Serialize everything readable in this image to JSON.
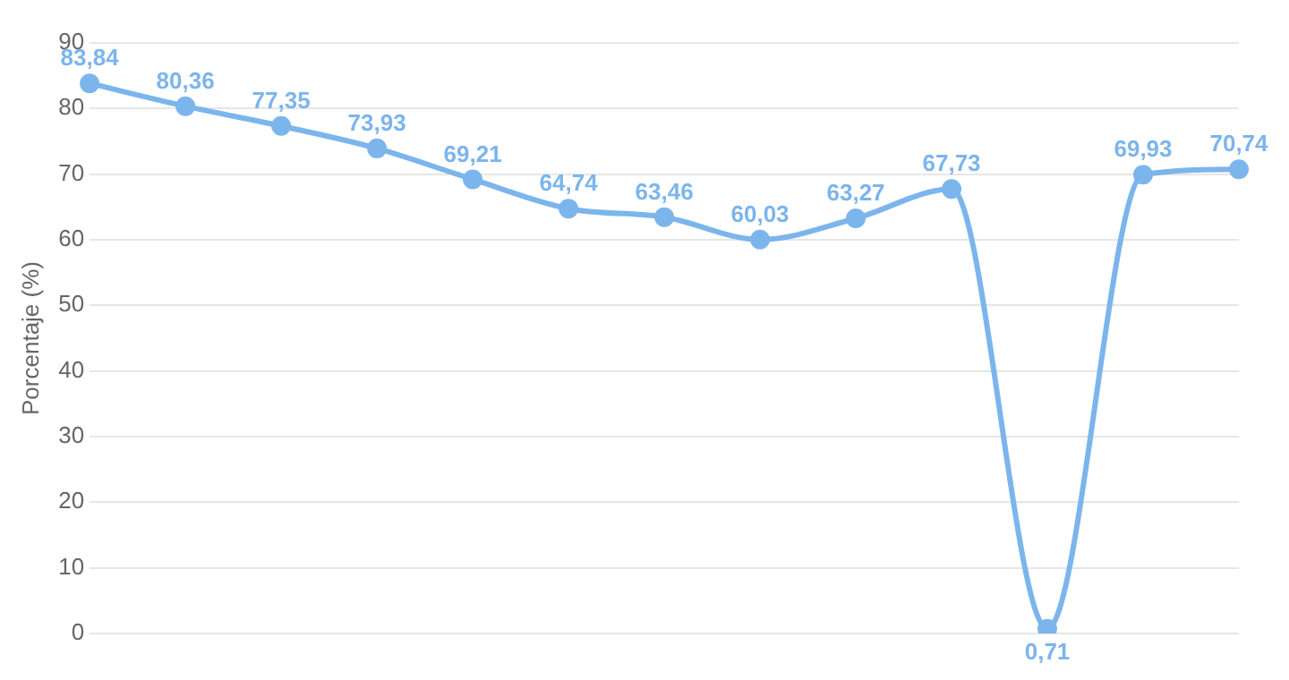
{
  "chart_data": {
    "type": "line",
    "ylabel": "Porcentaje (%)",
    "categories": [
      null,
      null,
      null,
      null,
      null,
      null,
      null,
      null,
      null,
      null,
      null,
      null,
      null
    ],
    "series": [
      {
        "color": "#7cb5ec",
        "values": [
          83.84,
          80.36,
          77.35,
          73.93,
          69.21,
          64.74,
          63.46,
          60.03,
          63.27,
          67.73,
          0.71,
          69.93,
          70.74
        ],
        "value_labels": [
          "83,84",
          "80,36",
          "77,35",
          "73,93",
          "69,21",
          "64,74",
          "63,46",
          "60,03",
          "63,27",
          "67,73",
          "0,71",
          "69,93",
          "70,74"
        ]
      }
    ],
    "ylim": [
      0,
      90
    ],
    "yticks": [
      0,
      10,
      20,
      30,
      40,
      50,
      60,
      70,
      80,
      90
    ],
    "grid": "y",
    "tick_labels": "y",
    "marker": "circle",
    "line_style": "solid",
    "legend": false
  }
}
